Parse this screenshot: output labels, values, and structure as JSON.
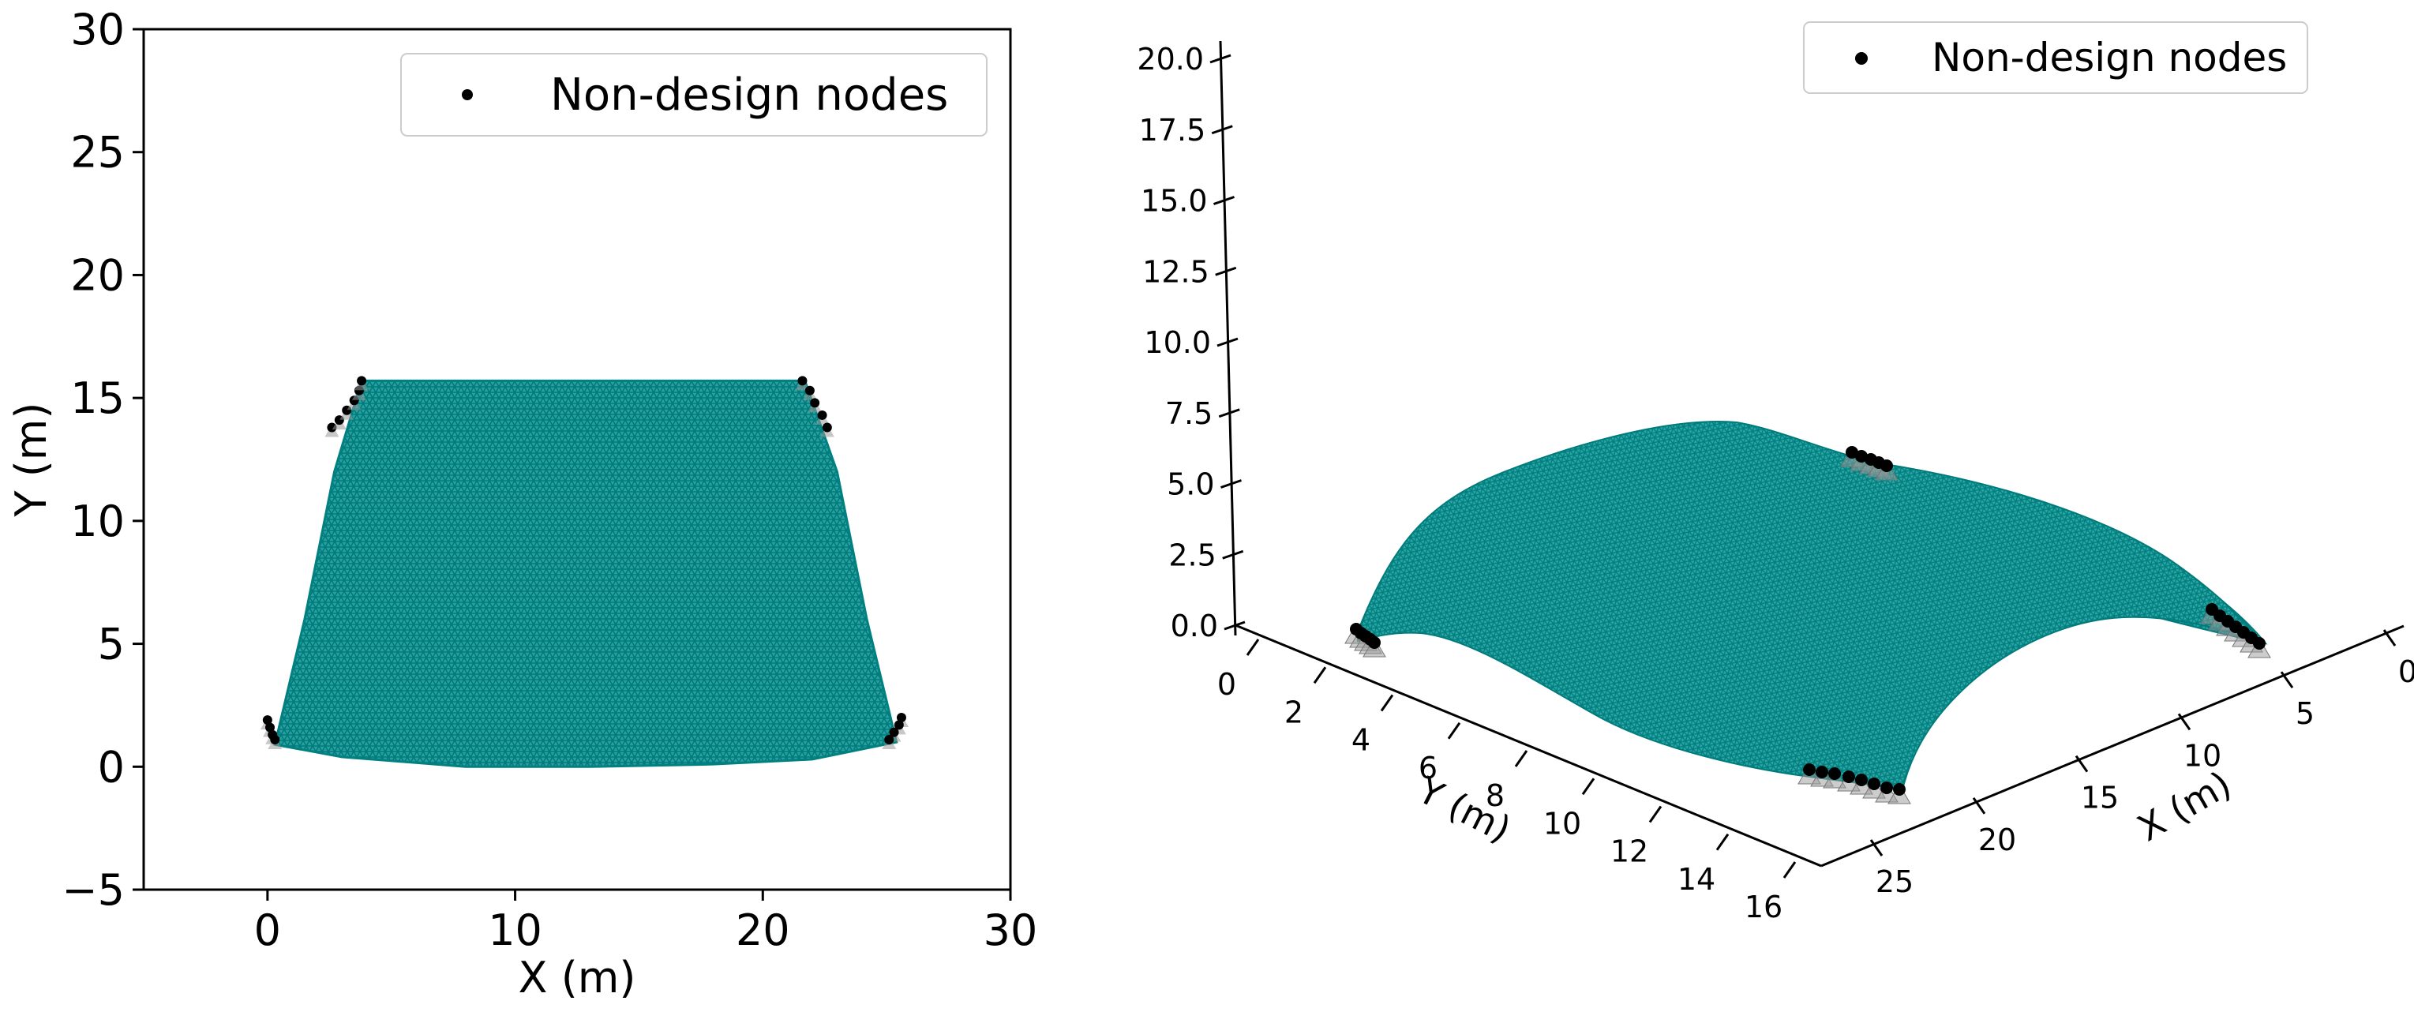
{
  "chart_data": [
    {
      "type": "scatter",
      "view": "plan (top view)",
      "xlabel": "X (m)",
      "ylabel": "Y (m)",
      "xlim": [
        -5,
        30
      ],
      "ylim": [
        -5,
        30
      ],
      "xticks": [
        "0",
        "10",
        "20",
        "30"
      ],
      "yticks": [
        "−5",
        "0",
        "5",
        "10",
        "15",
        "20",
        "25",
        "30"
      ],
      "legend": {
        "label": "Non-design nodes",
        "placement": "top-right"
      },
      "mesh_color": "#008b8b",
      "mesh_outline": {
        "bottom": [
          [
            0.3,
            0.9
          ],
          [
            3,
            0.4
          ],
          [
            8,
            0.0
          ],
          [
            13,
            0.0
          ],
          [
            18,
            0.1
          ],
          [
            22,
            0.3
          ],
          [
            25.4,
            1.0
          ]
        ],
        "top": [
          [
            3.8,
            15.7
          ],
          [
            21.7,
            15.7
          ]
        ],
        "left": [
          [
            0.3,
            0.9
          ],
          [
            1.5,
            6
          ],
          [
            2.7,
            12
          ],
          [
            3.8,
            15.7
          ]
        ],
        "right": [
          [
            25.4,
            1.0
          ],
          [
            24.2,
            6
          ],
          [
            23,
            12
          ],
          [
            21.7,
            15.7
          ]
        ]
      },
      "support_groups": [
        {
          "x": [
            0.0,
            0.1,
            0.2,
            0.3
          ],
          "y": [
            1.9,
            1.6,
            1.3,
            1.1
          ]
        },
        {
          "x": [
            25.6,
            25.5,
            25.3,
            25.1
          ],
          "y": [
            2.0,
            1.7,
            1.4,
            1.1
          ]
        },
        {
          "x": [
            2.6,
            2.9,
            3.2,
            3.5,
            3.7,
            3.8
          ],
          "y": [
            13.8,
            14.1,
            14.5,
            14.9,
            15.3,
            15.7
          ]
        },
        {
          "x": [
            21.6,
            21.9,
            22.1,
            22.4,
            22.6
          ],
          "y": [
            15.7,
            15.3,
            14.8,
            14.3,
            13.8
          ]
        }
      ]
    },
    {
      "type": "3d-surface",
      "view": "isometric",
      "xlabel": "X (m)",
      "ylabel": "Y (m)",
      "zlabel": "",
      "xlim": [
        0,
        25
      ],
      "ylim": [
        0,
        16
      ],
      "zlim": [
        0,
        20
      ],
      "xticks": [
        "0",
        "5",
        "10",
        "15",
        "20",
        "25"
      ],
      "yticks": [
        "0",
        "2",
        "4",
        "6",
        "8",
        "10",
        "12",
        "14",
        "16"
      ],
      "zticks": [
        "0.0",
        "2.5",
        "5.0",
        "7.5",
        "10.0",
        "12.5",
        "15.0",
        "17.5",
        "20.0"
      ],
      "legend": {
        "label": "Non-design nodes",
        "placement": "top-right"
      },
      "surface_color": "#008b8b",
      "approx_peak_height": 8
    }
  ]
}
